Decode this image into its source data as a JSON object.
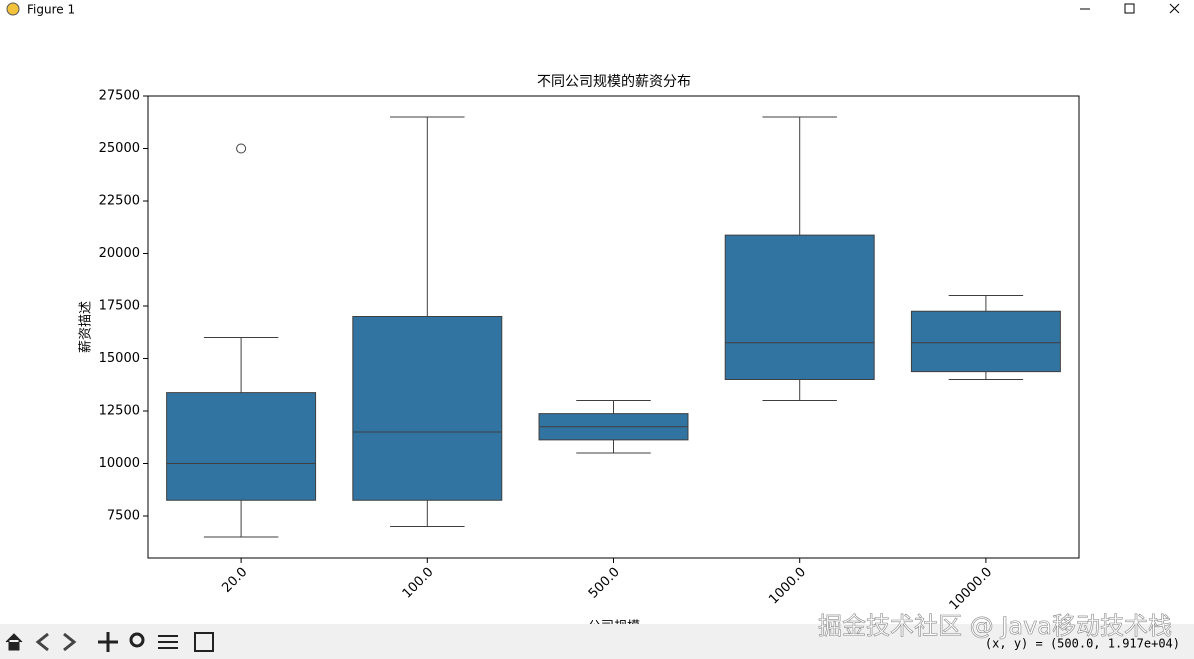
{
  "window": {
    "title": "Figure 1"
  },
  "chart_data": {
    "type": "box",
    "title": "不同公司规模的薪资分布",
    "xlabel": "公司规模",
    "ylabel": "薪资描述",
    "categories": [
      "20.0",
      "100.0",
      "500.0",
      "1000.0",
      "10000.0"
    ],
    "boxes": [
      {
        "whislo": 6500,
        "q1": 8250,
        "med": 10000,
        "q3": 13375,
        "whishi": 16000,
        "fliers": [
          25000
        ]
      },
      {
        "whislo": 7000,
        "q1": 8250,
        "med": 11500,
        "q3": 17000,
        "whishi": 26500,
        "fliers": []
      },
      {
        "whislo": 10500,
        "q1": 11125,
        "med": 11750,
        "q3": 12375,
        "whishi": 13000,
        "fliers": []
      },
      {
        "whislo": 13000,
        "q1": 14000,
        "med": 15750,
        "q3": 20875,
        "whishi": 26500,
        "fliers": []
      },
      {
        "whislo": 14000,
        "q1": 14375,
        "med": 15750,
        "q3": 17250,
        "whishi": 18000,
        "fliers": []
      }
    ],
    "color": "#3274a1",
    "ylim": [
      5500,
      27500
    ],
    "yticks": [
      7500,
      10000,
      12500,
      15000,
      17500,
      20000,
      22500,
      25000,
      27500
    ]
  },
  "status": {
    "coords": "(x, y) = (500.0, 1.917e+04)",
    "watermark": "掘金技术社区 @ Java移动技术栈"
  }
}
